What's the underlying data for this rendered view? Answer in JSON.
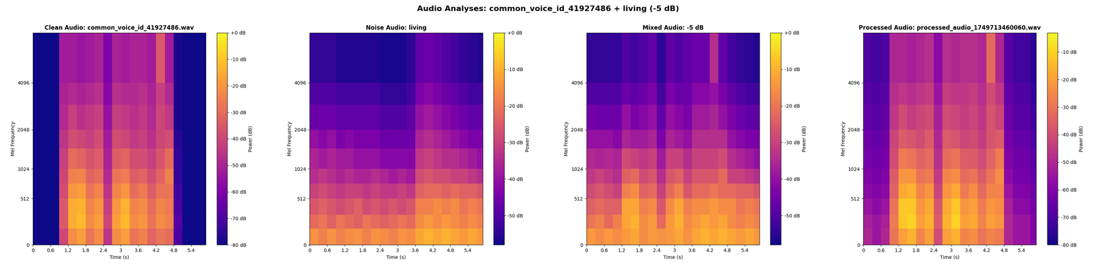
{
  "title": "Audio Analyses: common_voice_id_41927486 + living (-5 dB)",
  "chart_data": [
    {
      "type": "heatmap",
      "title": "Clean Audio: common_voice_id_41927486.wav",
      "x_label": "Time (s)",
      "y_label": "Mel Frequency",
      "color": "plasma",
      "xlim": [
        0,
        5.9
      ],
      "xticks": [
        0,
        0.6,
        1.2,
        1.8,
        2.4,
        3,
        3.6,
        4.2,
        4.8,
        5.4
      ],
      "ylim": [
        0,
        8000
      ],
      "yticks": [
        0,
        512,
        1024,
        2048,
        4096
      ],
      "x_edges": [
        0,
        0.3,
        0.6,
        0.9,
        1.2,
        1.5,
        1.8,
        2.1,
        2.4,
        2.7,
        3.0,
        3.3,
        3.6,
        3.9,
        4.2,
        4.5,
        4.8,
        5.1,
        5.4,
        5.7,
        5.9
      ],
      "y_edges": [
        0,
        150,
        300,
        512,
        750,
        1024,
        1500,
        2048,
        3000,
        4096,
        8000
      ],
      "cells": [
        [
          -80,
          -80,
          -80,
          -40,
          -22,
          -18,
          -28,
          -22,
          -45,
          -22,
          -18,
          -28,
          -25,
          -32,
          -28,
          -30,
          -70,
          -80,
          -80,
          -80
        ],
        [
          -80,
          -80,
          -80,
          -35,
          -15,
          -12,
          -22,
          -18,
          -40,
          -18,
          -12,
          -22,
          -20,
          -28,
          -22,
          -25,
          -68,
          -80,
          -80,
          -80
        ],
        [
          -80,
          -80,
          -80,
          -35,
          -15,
          -14,
          -24,
          -20,
          -42,
          -20,
          -14,
          -24,
          -22,
          -30,
          -24,
          -26,
          -70,
          -80,
          -80,
          -80
        ],
        [
          -80,
          -80,
          -80,
          -38,
          -20,
          -18,
          -28,
          -24,
          -45,
          -24,
          -20,
          -30,
          -26,
          -34,
          -28,
          -28,
          -72,
          -80,
          -80,
          -80
        ],
        [
          -80,
          -80,
          -80,
          -40,
          -25,
          -24,
          -32,
          -30,
          -48,
          -28,
          -26,
          -34,
          -32,
          -38,
          -32,
          -25,
          -74,
          -80,
          -80,
          -80
        ],
        [
          -80,
          -80,
          -80,
          -42,
          -30,
          -32,
          -36,
          -34,
          -50,
          -34,
          -32,
          -38,
          -38,
          -42,
          -36,
          -30,
          -75,
          -80,
          -80,
          -80
        ],
        [
          -80,
          -80,
          -80,
          -45,
          -38,
          -40,
          -42,
          -38,
          -52,
          -38,
          -40,
          -44,
          -42,
          -46,
          -40,
          -38,
          -76,
          -80,
          -80,
          -80
        ],
        [
          -80,
          -80,
          -80,
          -48,
          -42,
          -46,
          -44,
          -42,
          -55,
          -42,
          -44,
          -46,
          -44,
          -48,
          -40,
          -44,
          -78,
          -80,
          -80,
          -80
        ],
        [
          -80,
          -80,
          -80,
          -50,
          -48,
          -50,
          -48,
          -46,
          -58,
          -46,
          -48,
          -48,
          -46,
          -50,
          -42,
          -48,
          -78,
          -80,
          -80,
          -80
        ],
        [
          -80,
          -80,
          -80,
          -52,
          -52,
          -54,
          -52,
          -50,
          -60,
          -50,
          -52,
          -50,
          -50,
          -52,
          -35,
          -52,
          -78,
          -80,
          -80,
          -80
        ]
      ],
      "colorbar": {
        "label": "Power (dB)",
        "range": [
          -80,
          0
        ],
        "ticks": [
          {
            "value": 0,
            "label": "+0 dB"
          },
          {
            "value": -10,
            "label": "-10 dB"
          },
          {
            "value": -20,
            "label": "-20 dB"
          },
          {
            "value": -30,
            "label": "-30 dB"
          },
          {
            "value": -40,
            "label": "-40 dB"
          },
          {
            "value": -50,
            "label": "-50 dB"
          },
          {
            "value": -60,
            "label": "-60 dB"
          },
          {
            "value": -70,
            "label": "-70 dB"
          },
          {
            "value": -80,
            "label": "-80 dB"
          }
        ]
      }
    },
    {
      "type": "heatmap",
      "title": "Noise Audio: living",
      "x_label": "Time (s)",
      "y_label": "Mel Frequency",
      "color": "plasma",
      "xlim": [
        0,
        5.9
      ],
      "xticks": [
        0,
        0.6,
        1.2,
        1.8,
        2.4,
        3,
        3.6,
        4.2,
        4.8,
        5.4
      ],
      "ylim": [
        0,
        8000
      ],
      "yticks": [
        0,
        512,
        1024,
        2048,
        4096
      ],
      "x_edges": [
        0,
        0.3,
        0.6,
        0.9,
        1.2,
        1.5,
        1.8,
        2.1,
        2.4,
        2.7,
        3.0,
        3.3,
        3.6,
        3.9,
        4.2,
        4.5,
        4.8,
        5.1,
        5.4,
        5.7,
        5.9
      ],
      "y_edges": [
        0,
        150,
        300,
        512,
        750,
        1024,
        1500,
        2048,
        3000,
        4096,
        8000
      ],
      "cells": [
        [
          -15,
          -18,
          -15,
          -18,
          -16,
          -15,
          -18,
          -15,
          -16,
          -18,
          -15,
          -16,
          -12,
          -10,
          -12,
          -10,
          -12,
          -14,
          -12,
          -14
        ],
        [
          -22,
          -20,
          -24,
          -20,
          -22,
          -24,
          -20,
          -22,
          -24,
          -22,
          -20,
          -22,
          -16,
          -14,
          -16,
          -14,
          -16,
          -18,
          -16,
          -18
        ],
        [
          -26,
          -24,
          -26,
          -28,
          -26,
          -24,
          -28,
          -26,
          -28,
          -26,
          -28,
          -26,
          -18,
          -18,
          -16,
          -18,
          -16,
          -20,
          -18,
          -20
        ],
        [
          -30,
          -28,
          -30,
          -32,
          -30,
          -30,
          -32,
          -30,
          -32,
          -32,
          -30,
          -32,
          -24,
          -22,
          -22,
          -24,
          -22,
          -24,
          -24,
          -26
        ],
        [
          -34,
          -32,
          -34,
          -36,
          -34,
          -36,
          -36,
          -34,
          -36,
          -38,
          -36,
          -38,
          -28,
          -26,
          -28,
          -28,
          -30,
          -30,
          -32,
          -34
        ],
        [
          -36,
          -38,
          -36,
          -38,
          -38,
          -40,
          -40,
          -40,
          -42,
          -42,
          -42,
          -42,
          -32,
          -30,
          -32,
          -34,
          -34,
          -36,
          -38,
          -40
        ],
        [
          -40,
          -42,
          -40,
          -44,
          -42,
          -44,
          -44,
          -44,
          -46,
          -46,
          -46,
          -46,
          -36,
          -34,
          -36,
          -38,
          -40,
          -42,
          -44,
          -44
        ],
        [
          -46,
          -46,
          -46,
          -48,
          -48,
          -48,
          -48,
          -48,
          -50,
          -50,
          -50,
          -48,
          -40,
          -38,
          -40,
          -42,
          -44,
          -46,
          -48,
          -48
        ],
        [
          -50,
          -50,
          -50,
          -52,
          -52,
          -52,
          -52,
          -52,
          -54,
          -54,
          -54,
          -52,
          -44,
          -42,
          -44,
          -46,
          -48,
          -50,
          -52,
          -52
        ],
        [
          -54,
          -54,
          -54,
          -56,
          -56,
          -56,
          -56,
          -56,
          -57,
          -57,
          -57,
          -55,
          -48,
          -46,
          -48,
          -50,
          -52,
          -54,
          -55,
          -56
        ]
      ],
      "colorbar": {
        "label": "Power (dB)",
        "range": [
          -58,
          0
        ],
        "ticks": [
          {
            "value": 0,
            "label": "+0 dB"
          },
          {
            "value": -10,
            "label": "-10 dB"
          },
          {
            "value": -20,
            "label": "-20 dB"
          },
          {
            "value": -30,
            "label": "-30 dB"
          },
          {
            "value": -40,
            "label": "-40 dB"
          },
          {
            "value": -50,
            "label": "-50 dB"
          }
        ]
      }
    },
    {
      "type": "heatmap",
      "title": "Mixed Audio: -5 dB",
      "x_label": "Time (s)",
      "y_label": "Mel Frequency",
      "color": "plasma",
      "xlim": [
        0,
        5.9
      ],
      "xticks": [
        0,
        0.6,
        1.2,
        1.8,
        2.4,
        3,
        3.6,
        4.2,
        4.8,
        5.4
      ],
      "ylim": [
        0,
        8000
      ],
      "yticks": [
        0,
        512,
        1024,
        2048,
        4096
      ],
      "x_edges": [
        0,
        0.3,
        0.6,
        0.9,
        1.2,
        1.5,
        1.8,
        2.1,
        2.4,
        2.7,
        3.0,
        3.3,
        3.6,
        3.9,
        4.2,
        4.5,
        4.8,
        5.1,
        5.4,
        5.7,
        5.9
      ],
      "y_edges": [
        0,
        150,
        300,
        512,
        750,
        1024,
        1500,
        2048,
        3000,
        4096,
        8000
      ],
      "cells": [
        [
          -14,
          -16,
          -14,
          -16,
          -14,
          -12,
          -16,
          -14,
          -15,
          -14,
          -12,
          -15,
          -12,
          -10,
          -12,
          -10,
          -12,
          -14,
          -12,
          -14
        ],
        [
          -20,
          -18,
          -22,
          -18,
          -12,
          -10,
          -16,
          -14,
          -22,
          -14,
          -10,
          -16,
          -14,
          -12,
          -14,
          -12,
          -16,
          -18,
          -16,
          -18
        ],
        [
          -24,
          -22,
          -24,
          -24,
          -12,
          -12,
          -18,
          -16,
          -26,
          -16,
          -12,
          -18,
          -16,
          -16,
          -14,
          -16,
          -16,
          -20,
          -18,
          -20
        ],
        [
          -28,
          -26,
          -28,
          -30,
          -18,
          -16,
          -24,
          -22,
          -30,
          -22,
          -18,
          -26,
          -22,
          -22,
          -20,
          -22,
          -22,
          -24,
          -24,
          -26
        ],
        [
          -32,
          -30,
          -32,
          -34,
          -24,
          -22,
          -28,
          -26,
          -34,
          -26,
          -24,
          -30,
          -26,
          -26,
          -26,
          -22,
          -30,
          -30,
          -32,
          -34
        ],
        [
          -35,
          -36,
          -35,
          -36,
          -28,
          -30,
          -32,
          -30,
          -38,
          -30,
          -30,
          -34,
          -30,
          -30,
          -30,
          -28,
          -34,
          -36,
          -38,
          -40
        ],
        [
          -40,
          -40,
          -40,
          -42,
          -36,
          -38,
          -38,
          -36,
          -44,
          -36,
          -38,
          -40,
          -34,
          -34,
          -34,
          -34,
          -40,
          -42,
          -44,
          -44
        ],
        [
          -45,
          -46,
          -46,
          -46,
          -40,
          -44,
          -42,
          -40,
          -48,
          -40,
          -42,
          -44,
          -38,
          -38,
          -36,
          -40,
          -44,
          -46,
          -48,
          -48
        ],
        [
          -50,
          -50,
          -50,
          -50,
          -46,
          -48,
          -46,
          -44,
          -52,
          -44,
          -46,
          -46,
          -42,
          -42,
          -40,
          -44,
          -48,
          -50,
          -52,
          -52
        ],
        [
          -54,
          -54,
          -54,
          -54,
          -50,
          -52,
          -50,
          -48,
          -55,
          -48,
          -50,
          -48,
          -46,
          -46,
          -34,
          -48,
          -52,
          -54,
          -55,
          -56
        ]
      ],
      "colorbar": {
        "label": "Power (dB)",
        "range": [
          -58,
          0
        ],
        "ticks": [
          {
            "value": 0,
            "label": "+0 dB"
          },
          {
            "value": -10,
            "label": "-10 dB"
          },
          {
            "value": -20,
            "label": "-20 dB"
          },
          {
            "value": -30,
            "label": "-30 dB"
          },
          {
            "value": -40,
            "label": "-40 dB"
          },
          {
            "value": -50,
            "label": "-50 dB"
          }
        ]
      }
    },
    {
      "type": "heatmap",
      "title": "Processed Audio: processed_audio_1749713460060.wav",
      "x_label": "Time (s)",
      "y_label": "Mel Frequency",
      "color": "plasma",
      "xlim": [
        0,
        5.9
      ],
      "xticks": [
        0,
        0.6,
        1.2,
        1.8,
        2.4,
        3,
        3.6,
        4.2,
        4.8,
        5.4
      ],
      "ylim": [
        0,
        8000
      ],
      "yticks": [
        0,
        512,
        1024,
        2048,
        4096
      ],
      "x_edges": [
        0,
        0.3,
        0.6,
        0.9,
        1.2,
        1.5,
        1.8,
        2.1,
        2.4,
        2.7,
        3.0,
        3.3,
        3.6,
        3.9,
        4.2,
        4.5,
        4.8,
        5.1,
        5.4,
        5.7,
        5.9
      ],
      "y_edges": [
        0,
        150,
        300,
        512,
        750,
        1024,
        1500,
        2048,
        3000,
        4096,
        8000
      ],
      "cells": [
        [
          -50,
          -55,
          -50,
          -30,
          -20,
          -16,
          -26,
          -20,
          -40,
          -20,
          -16,
          -26,
          -24,
          -30,
          -26,
          -28,
          -50,
          -55,
          -55,
          -60
        ],
        [
          -52,
          -55,
          -52,
          -28,
          -12,
          -10,
          -20,
          -16,
          -36,
          -16,
          -10,
          -20,
          -18,
          -26,
          -20,
          -22,
          -50,
          -55,
          -55,
          -60
        ],
        [
          -55,
          -58,
          -55,
          -30,
          -12,
          -12,
          -22,
          -18,
          -38,
          -18,
          -12,
          -22,
          -20,
          -28,
          -22,
          -24,
          -52,
          -58,
          -58,
          -62
        ],
        [
          -58,
          -60,
          -58,
          -34,
          -18,
          -16,
          -26,
          -22,
          -42,
          -22,
          -18,
          -28,
          -24,
          -32,
          -26,
          -26,
          -55,
          -60,
          -60,
          -64
        ],
        [
          -60,
          -62,
          -60,
          -36,
          -22,
          -22,
          -30,
          -28,
          -45,
          -26,
          -24,
          -32,
          -30,
          -36,
          -30,
          -24,
          -58,
          -62,
          -62,
          -66
        ],
        [
          -62,
          -64,
          -62,
          -40,
          -28,
          -30,
          -34,
          -32,
          -48,
          -32,
          -30,
          -36,
          -36,
          -40,
          -34,
          -28,
          -60,
          -64,
          -64,
          -68
        ],
        [
          -64,
          -66,
          -64,
          -42,
          -36,
          -38,
          -40,
          -36,
          -50,
          -36,
          -38,
          -42,
          -40,
          -44,
          -38,
          -36,
          -62,
          -66,
          -66,
          -70
        ],
        [
          -66,
          -68,
          -66,
          -46,
          -40,
          -44,
          -42,
          -40,
          -52,
          -40,
          -42,
          -44,
          -42,
          -46,
          -38,
          -42,
          -64,
          -68,
          -68,
          -72
        ],
        [
          -68,
          -70,
          -68,
          -48,
          -46,
          -48,
          -46,
          -44,
          -55,
          -44,
          -46,
          -46,
          -44,
          -48,
          -40,
          -46,
          -66,
          -70,
          -70,
          -74
        ],
        [
          -70,
          -72,
          -70,
          -50,
          -50,
          -52,
          -50,
          -48,
          -58,
          -48,
          -50,
          -48,
          -48,
          -50,
          -32,
          -50,
          -68,
          -72,
          -72,
          -76
        ]
      ],
      "colorbar": {
        "label": "Power (dB)",
        "range": [
          -80,
          -3
        ],
        "ticks": [
          {
            "value": -10,
            "label": "-10 dB"
          },
          {
            "value": -20,
            "label": "-20 dB"
          },
          {
            "value": -30,
            "label": "-30 dB"
          },
          {
            "value": -40,
            "label": "-40 dB"
          },
          {
            "value": -50,
            "label": "-50 dB"
          },
          {
            "value": -60,
            "label": "-60 dB"
          },
          {
            "value": -70,
            "label": "-70 dB"
          },
          {
            "value": -80,
            "label": "-80 dB"
          }
        ]
      }
    }
  ]
}
